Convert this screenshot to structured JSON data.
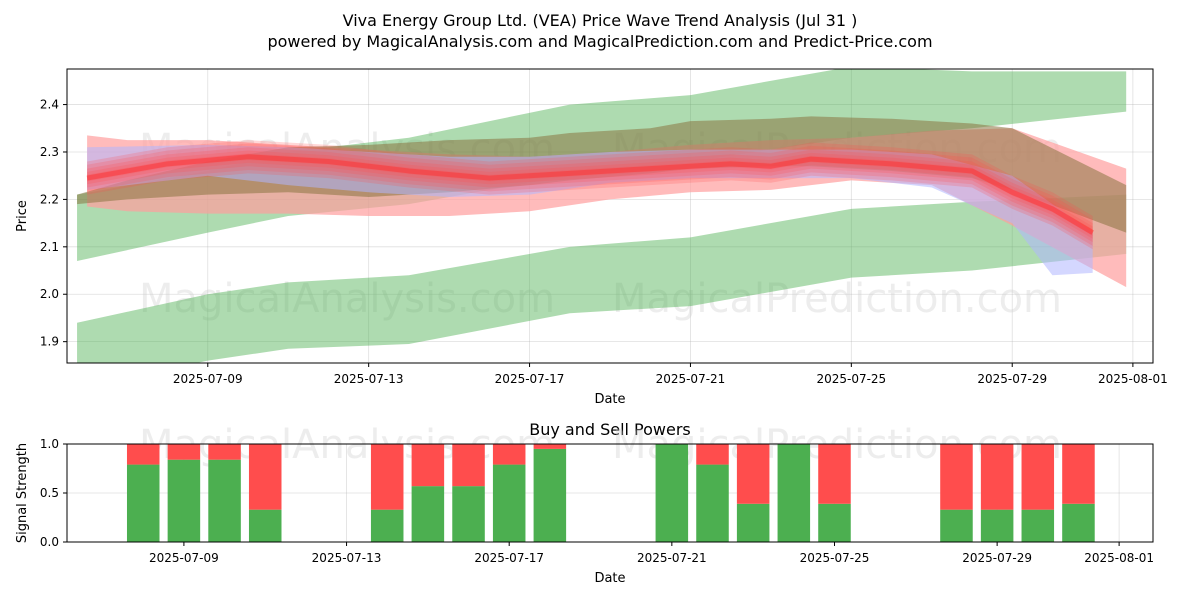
{
  "title_line1": "Viva Energy Group Ltd. (VEA) Price Wave Trend Analysis (Jul 31 )",
  "title_line2": "powered by MagicalAnalysis.com and MagicalPrediction.com and Predict-Price.com",
  "watermarks": [
    "MagicalAnalysis.com",
    "MagicalPrediction.com"
  ],
  "colors": {
    "green": "#4caf50",
    "red": "#ff4d4d",
    "band_green": "#a5d6a7",
    "band_red": "#ff9e9e",
    "band_brown": "#8b7442",
    "band_blue": "#b0b7ff"
  },
  "chart_data": [
    {
      "type": "area",
      "xlabel": "Date",
      "ylabel": "Price",
      "x_range": [
        "2025-07-05T12:00",
        "2025-08-01T12:00"
      ],
      "ylim": [
        1.855,
        2.475
      ],
      "x_ticks": [
        "2025-07-09",
        "2025-07-13",
        "2025-07-17",
        "2025-07-21",
        "2025-07-25",
        "2025-07-29",
        "2025-08-01"
      ],
      "y_ticks": [
        1.9,
        2.0,
        2.1,
        2.2,
        2.3,
        2.4
      ],
      "grid": true,
      "bands": [
        {
          "color": "green",
          "opacity": 0.45,
          "dates": [
            "2025-07-05T18:00",
            "2025-07-09",
            "2025-07-11",
            "2025-07-14",
            "2025-07-18",
            "2025-07-21",
            "2025-07-25",
            "2025-07-28",
            "2025-07-31T20:00"
          ],
          "upper": [
            2.21,
            2.26,
            2.3,
            2.33,
            2.4,
            2.42,
            2.48,
            2.47,
            2.47
          ],
          "lower": [
            2.07,
            2.13,
            2.165,
            2.19,
            2.25,
            2.28,
            2.33,
            2.35,
            2.385
          ]
        },
        {
          "color": "green",
          "opacity": 0.45,
          "dates": [
            "2025-07-05T18:00",
            "2025-07-09",
            "2025-07-11",
            "2025-07-14",
            "2025-07-18",
            "2025-07-21",
            "2025-07-25",
            "2025-07-28",
            "2025-07-31T20:00"
          ],
          "upper": [
            1.94,
            2.0,
            2.025,
            2.04,
            2.1,
            2.12,
            2.18,
            2.195,
            2.21
          ],
          "lower": [
            1.8,
            1.86,
            1.885,
            1.895,
            1.96,
            1.975,
            2.035,
            2.05,
            2.085
          ]
        },
        {
          "color": "band_red",
          "opacity": 0.7,
          "dates": [
            "2025-07-06",
            "2025-07-07",
            "2025-07-09",
            "2025-07-11",
            "2025-07-13",
            "2025-07-15",
            "2025-07-17",
            "2025-07-19",
            "2025-07-21",
            "2025-07-23",
            "2025-07-25",
            "2025-07-27",
            "2025-07-29",
            "2025-07-31T20:00"
          ],
          "upper": [
            2.335,
            2.325,
            2.325,
            2.315,
            2.305,
            2.295,
            2.29,
            2.3,
            2.315,
            2.325,
            2.33,
            2.345,
            2.35,
            2.265
          ],
          "lower": [
            2.185,
            2.175,
            2.17,
            2.17,
            2.165,
            2.165,
            2.175,
            2.2,
            2.215,
            2.22,
            2.24,
            2.23,
            2.145,
            2.015
          ]
        },
        {
          "color": "band_brown",
          "opacity": 0.55,
          "dates": [
            "2025-07-05T18:00",
            "2025-07-07",
            "2025-07-09",
            "2025-07-11",
            "2025-07-13",
            "2025-07-15",
            "2025-07-17",
            "2025-07-18",
            "2025-07-20",
            "2025-07-21",
            "2025-07-23",
            "2025-07-24",
            "2025-07-26",
            "2025-07-28",
            "2025-07-29",
            "2025-07-31T20:00"
          ],
          "upper": [
            2.21,
            2.24,
            2.28,
            2.31,
            2.315,
            2.325,
            2.33,
            2.34,
            2.35,
            2.365,
            2.37,
            2.375,
            2.37,
            2.36,
            2.35,
            2.23
          ],
          "lower": [
            2.19,
            2.2,
            2.21,
            2.215,
            2.205,
            2.215,
            2.23,
            2.24,
            2.255,
            2.265,
            2.27,
            2.27,
            2.26,
            2.245,
            2.22,
            2.13
          ]
        },
        {
          "color": "band_blue",
          "opacity": 0.55,
          "dates": [
            "2025-07-06",
            "2025-07-09",
            "2025-07-11",
            "2025-07-13",
            "2025-07-15",
            "2025-07-17",
            "2025-07-19",
            "2025-07-21",
            "2025-07-23",
            "2025-07-25",
            "2025-07-27",
            "2025-07-29",
            "2025-07-30",
            "2025-07-31"
          ],
          "upper": [
            2.31,
            2.315,
            2.31,
            2.3,
            2.29,
            2.29,
            2.3,
            2.305,
            2.305,
            2.305,
            2.295,
            2.25,
            2.19,
            2.13
          ],
          "lower": [
            2.22,
            2.25,
            2.23,
            2.215,
            2.205,
            2.21,
            2.235,
            2.245,
            2.245,
            2.245,
            2.225,
            2.15,
            2.04,
            2.045
          ]
        }
      ],
      "wave_center": {
        "color": "red",
        "dates": [
          "2025-07-06",
          "2025-07-08",
          "2025-07-10",
          "2025-07-12",
          "2025-07-14",
          "2025-07-16",
          "2025-07-18",
          "2025-07-20",
          "2025-07-22",
          "2025-07-23",
          "2025-07-24",
          "2025-07-26",
          "2025-07-28",
          "2025-07-29",
          "2025-07-30",
          "2025-07-31"
        ],
        "values": [
          2.245,
          2.275,
          2.29,
          2.28,
          2.26,
          2.245,
          2.255,
          2.265,
          2.275,
          2.27,
          2.285,
          2.275,
          2.26,
          2.215,
          2.18,
          2.13
        ]
      }
    },
    {
      "type": "bar",
      "title": "Buy and Sell Powers",
      "xlabel": "Date",
      "ylabel": "Signal Strength",
      "ylim": [
        0,
        1
      ],
      "y_ticks": [
        "0.0",
        "0.5",
        "1.0"
      ],
      "x_ticks": [
        "2025-07-09",
        "2025-07-13",
        "2025-07-17",
        "2025-07-21",
        "2025-07-25",
        "2025-07-29",
        "2025-08-01"
      ],
      "grid": true,
      "dates": [
        "2025-07-08",
        "2025-07-09",
        "2025-07-10",
        "2025-07-11",
        "2025-07-14",
        "2025-07-15",
        "2025-07-16",
        "2025-07-17",
        "2025-07-18",
        "2025-07-21",
        "2025-07-22",
        "2025-07-23",
        "2025-07-24",
        "2025-07-25",
        "2025-07-28",
        "2025-07-29",
        "2025-07-30",
        "2025-07-31"
      ],
      "buy": [
        0.79,
        0.84,
        0.84,
        0.33,
        0.33,
        0.57,
        0.57,
        0.79,
        0.95,
        1.0,
        0.79,
        0.39,
        1.0,
        0.39,
        0.33,
        0.33,
        0.33,
        0.39
      ],
      "sell": [
        0.21,
        0.16,
        0.16,
        0.67,
        0.67,
        0.43,
        0.43,
        0.21,
        0.05,
        0.0,
        0.21,
        0.61,
        0.0,
        0.61,
        0.67,
        0.67,
        0.67,
        0.61
      ]
    }
  ]
}
